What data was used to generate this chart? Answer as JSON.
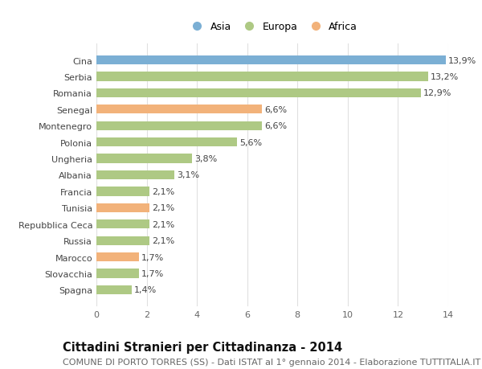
{
  "categories": [
    "Spagna",
    "Slovacchia",
    "Marocco",
    "Russia",
    "Repubblica Ceca",
    "Tunisia",
    "Francia",
    "Albania",
    "Ungheria",
    "Polonia",
    "Montenegro",
    "Senegal",
    "Romania",
    "Serbia",
    "Cina"
  ],
  "values": [
    1.4,
    1.7,
    1.7,
    2.1,
    2.1,
    2.1,
    2.1,
    3.1,
    3.8,
    5.6,
    6.6,
    6.6,
    12.9,
    13.2,
    13.9
  ],
  "labels": [
    "1,4%",
    "1,7%",
    "1,7%",
    "2,1%",
    "2,1%",
    "2,1%",
    "2,1%",
    "3,1%",
    "3,8%",
    "5,6%",
    "6,6%",
    "6,6%",
    "12,9%",
    "13,2%",
    "13,9%"
  ],
  "colors": [
    "#aec984",
    "#aec984",
    "#f2b27a",
    "#aec984",
    "#aec984",
    "#f2b27a",
    "#aec984",
    "#aec984",
    "#aec984",
    "#aec984",
    "#aec984",
    "#f2b27a",
    "#aec984",
    "#aec984",
    "#7bafd4"
  ],
  "legend_labels": [
    "Asia",
    "Europa",
    "Africa"
  ],
  "legend_colors": [
    "#7bafd4",
    "#aec984",
    "#f2b27a"
  ],
  "title": "Cittadini Stranieri per Cittadinanza - 2014",
  "subtitle": "COMUNE DI PORTO TORRES (SS) - Dati ISTAT al 1° gennaio 2014 - Elaborazione TUTTITALIA.IT",
  "xlim": [
    0,
    14
  ],
  "xticks": [
    0,
    2,
    4,
    6,
    8,
    10,
    12,
    14
  ],
  "background_color": "#ffffff",
  "plot_bg_color": "#ffffff",
  "grid_color": "#e0e0e0",
  "title_fontsize": 10.5,
  "subtitle_fontsize": 8,
  "label_fontsize": 8,
  "tick_fontsize": 8,
  "ylabel_fontsize": 8
}
